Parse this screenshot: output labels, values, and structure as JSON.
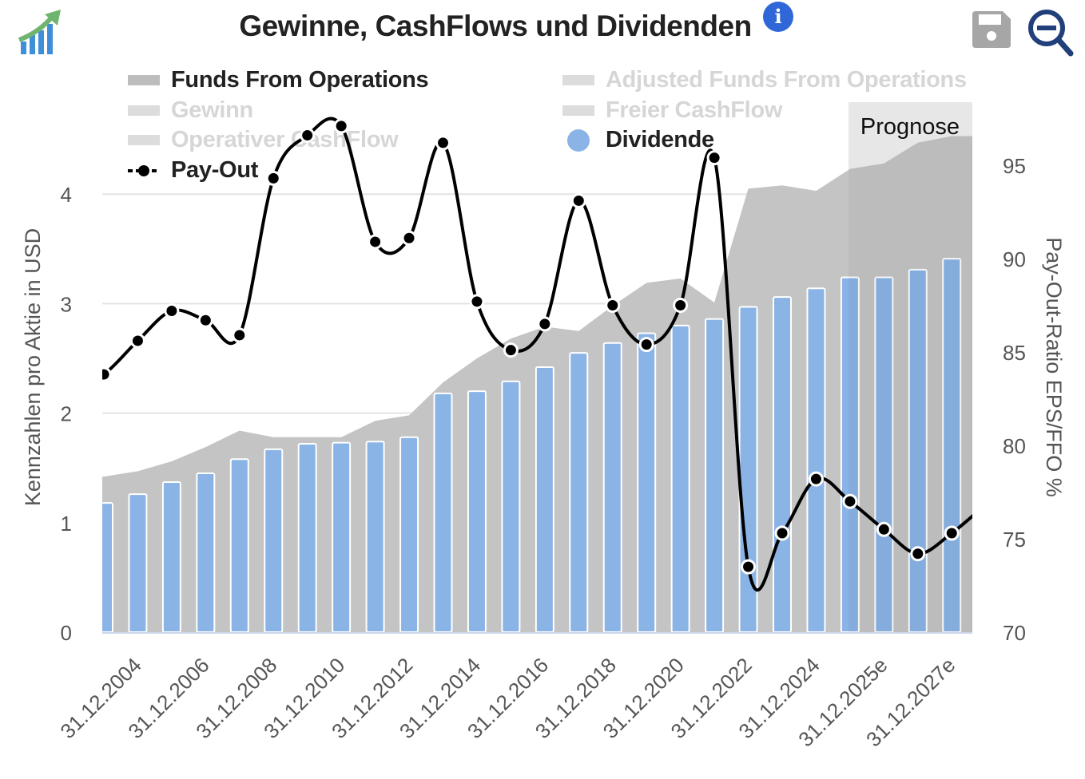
{
  "header": {
    "title": "Gewinne, CashFlows und Dividenden",
    "info_icon": "info-circle-icon",
    "logo_icon": "growth-chart-logo-icon",
    "save_icon": "floppy-disk-save-icon",
    "zoom_icon": "zoom-out-magnifier-icon"
  },
  "legend": [
    {
      "label": "Funds From Operations",
      "active": true,
      "marker": "area",
      "color": "#bdbdbd"
    },
    {
      "label": "Gewinn",
      "active": false,
      "marker": "area"
    },
    {
      "label": "Operativer CashFlow",
      "active": false,
      "marker": "area"
    },
    {
      "label": "Pay-Out",
      "active": true,
      "marker": "dashed-line-dot",
      "color": "#000000"
    },
    {
      "label": "Adjusted Funds From Operations",
      "active": false,
      "marker": "area"
    },
    {
      "label": "Freier CashFlow",
      "active": false,
      "marker": "area"
    },
    {
      "label": "Dividende",
      "active": true,
      "marker": "circle",
      "color": "#8ab4e6"
    }
  ],
  "chart_data": {
    "type": "bar+area+line",
    "title": "Gewinne, CashFlows und Dividenden",
    "forecast_label": "Prognose",
    "forecast_start_index": 22,
    "x_tick_labels": [
      "31.12.2004",
      "31.12.2006",
      "31.12.2008",
      "31.12.2010",
      "31.12.2012",
      "31.12.2014",
      "31.12.2016",
      "31.12.2018",
      "31.12.2020",
      "31.12.2022",
      "31.12.2024",
      "31.12.2025e",
      "31.12.2027e"
    ],
    "x_tick_label_indices": [
      1,
      3,
      5,
      7,
      9,
      11,
      13,
      15,
      17,
      19,
      21,
      23,
      25
    ],
    "ylabel_left": "Kennzahlen pro Aktie in USD",
    "ylim_left": [
      0,
      4.5
    ],
    "yticks_left": [
      "0",
      "1",
      "2",
      "3",
      "4"
    ],
    "ylabel_right": "Pay-Out-Ratio EPS/FFO %",
    "ylim_right": [
      70,
      96.5
    ],
    "yticks_right": [
      "70",
      "75",
      "80",
      "85",
      "90",
      "95"
    ],
    "grid": true,
    "legend_position": "top",
    "series": [
      {
        "name": "Funds From Operations",
        "type": "area",
        "axis": "left",
        "color": "#c4c4c4",
        "values": [
          1.42,
          1.47,
          1.56,
          1.69,
          1.84,
          1.78,
          1.78,
          1.78,
          1.93,
          1.98,
          2.28,
          2.5,
          2.68,
          2.79,
          2.75,
          2.98,
          3.19,
          3.23,
          3.01,
          4.05,
          4.08,
          4.03,
          4.23,
          4.28,
          4.47,
          4.53
        ]
      },
      {
        "name": "Dividende",
        "type": "bar",
        "axis": "left",
        "color": "#8ab4e6",
        "values": [
          1.18,
          1.26,
          1.37,
          1.45,
          1.58,
          1.67,
          1.72,
          1.73,
          1.74,
          1.78,
          2.18,
          2.2,
          2.29,
          2.42,
          2.55,
          2.64,
          2.73,
          2.8,
          2.86,
          2.97,
          3.06,
          3.14,
          3.24,
          3.24,
          3.31,
          3.41
        ]
      },
      {
        "name": "Pay-Out",
        "type": "line",
        "axis": "right",
        "color": "#000000",
        "values": [
          83.8,
          85.6,
          87.2,
          86.7,
          85.9,
          94.3,
          96.6,
          97.1,
          90.9,
          91.1,
          96.2,
          87.7,
          85.1,
          86.5,
          93.1,
          87.5,
          85.4,
          87.5,
          95.4,
          73.5,
          75.3,
          78.2,
          77.0,
          75.5,
          74.2,
          75.3
        ]
      }
    ]
  }
}
